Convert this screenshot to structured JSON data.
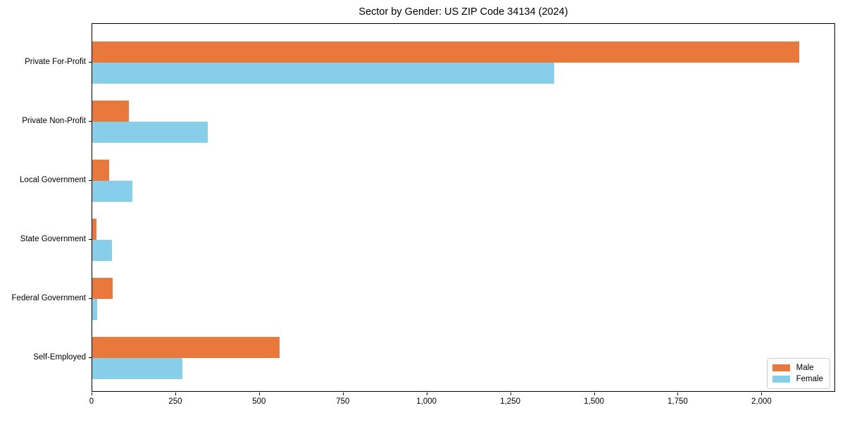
{
  "title": "Sector by Gender: US ZIP Code 34134 (2024)",
  "chart_data": {
    "type": "bar",
    "orientation": "horizontal",
    "title": "Sector by Gender: US ZIP Code 34134 (2024)",
    "categories": [
      "Private For-Profit",
      "Private Non-Profit",
      "Local Government",
      "State Government",
      "Federal Government",
      "Self-Employed"
    ],
    "series": [
      {
        "name": "Male",
        "color": "#E8783C",
        "values": [
          2110,
          110,
          50,
          12,
          60,
          560
        ]
      },
      {
        "name": "Female",
        "color": "#87CEEB",
        "values": [
          1380,
          345,
          120,
          58,
          15,
          270
        ]
      }
    ],
    "xlabel": "",
    "ylabel": "",
    "xlim": [
      0,
      2220
    ],
    "xticks": [
      0,
      250,
      500,
      750,
      1000,
      1250,
      1500,
      1750,
      2000
    ],
    "xtick_labels": [
      "0",
      "250",
      "500",
      "750",
      "1,000",
      "1,250",
      "1,500",
      "1,750",
      "2,000"
    ],
    "grid": false,
    "legend_position": "lower right"
  },
  "colors": {
    "male": "#E8783C",
    "female": "#87CEEB",
    "axis": "#000000",
    "background": "#FFFFFF",
    "legend_border": "#CCCCCC"
  }
}
